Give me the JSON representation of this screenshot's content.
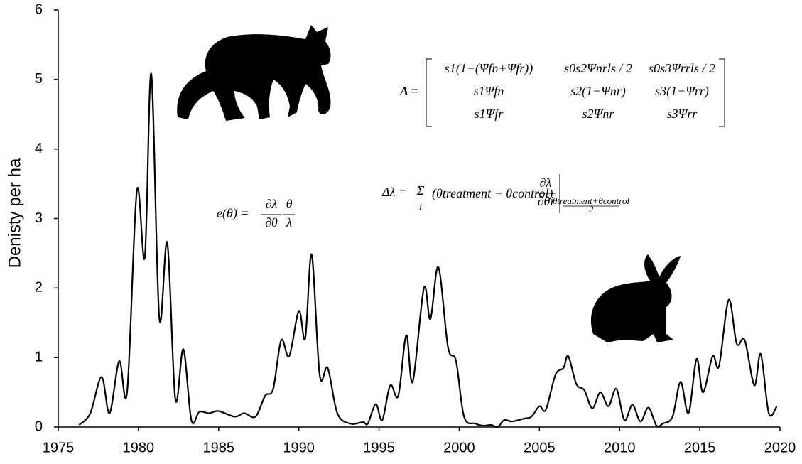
{
  "chart_data": {
    "type": "line",
    "y_label": "Denisty per ha",
    "x": [
      1976.3,
      1977.0,
      1977.7,
      1978.2,
      1978.8,
      1979.3,
      1979.9,
      1980.4,
      1980.8,
      1981.3,
      1981.8,
      1982.3,
      1982.8,
      1983.3,
      1983.8,
      1984.4,
      1985.0,
      1986.0,
      1986.6,
      1987.3,
      1987.9,
      1988.4,
      1988.9,
      1989.4,
      1990.0,
      1990.4,
      1990.8,
      1991.3,
      1991.8,
      1992.4,
      1993.2,
      1994.0,
      1994.3,
      1994.8,
      1995.2,
      1995.7,
      1996.2,
      1996.7,
      1997.1,
      1997.8,
      1998.2,
      1998.7,
      1999.3,
      1999.8,
      2000.3,
      2001.0,
      2001.5,
      2002.0,
      2002.4,
      2002.8,
      2003.3,
      2004.0,
      2004.5,
      2005.0,
      2005.4,
      2006.0,
      2006.5,
      2006.8,
      2007.3,
      2007.8,
      2008.3,
      2008.8,
      2009.3,
      2009.8,
      2010.3,
      2010.8,
      2011.3,
      2011.8,
      2012.3,
      2012.7,
      2013.3,
      2013.8,
      2014.3,
      2014.8,
      2015.2,
      2015.8,
      2016.2,
      2016.8,
      2017.3,
      2017.8,
      2018.4,
      2018.8,
      2019.3,
      2019.8
    ],
    "series": [
      {
        "color": "#000000",
        "values": [
          0.03,
          0.2,
          0.72,
          0.2,
          0.95,
          0.52,
          3.4,
          2.45,
          5.08,
          1.57,
          2.65,
          0.4,
          1.12,
          0.1,
          0.22,
          0.2,
          0.23,
          0.15,
          0.2,
          0.15,
          0.45,
          0.55,
          1.25,
          1.02,
          1.67,
          1.28,
          2.48,
          0.75,
          0.85,
          0.2,
          0.05,
          0.07,
          0.05,
          0.33,
          0.1,
          0.6,
          0.45,
          1.32,
          0.65,
          2.0,
          1.55,
          2.3,
          1.15,
          0.95,
          0.15,
          0.05,
          0.02,
          0.03,
          0.0,
          0.1,
          0.08,
          0.12,
          0.15,
          0.3,
          0.25,
          0.75,
          0.85,
          1.02,
          0.62,
          0.53,
          0.27,
          0.5,
          0.3,
          0.55,
          0.1,
          0.32,
          0.08,
          0.28,
          0.02,
          0.05,
          0.15,
          0.65,
          0.2,
          0.98,
          0.5,
          1.02,
          0.88,
          1.83,
          1.2,
          1.25,
          0.6,
          1.05,
          0.2,
          0.3
        ]
      }
    ],
    "xlim": [
      1975,
      2020
    ],
    "xticks": [
      1975,
      1980,
      1985,
      1990,
      1995,
      2000,
      2005,
      2010,
      2015,
      2020
    ],
    "ylim": [
      0,
      6
    ],
    "yticks": [
      0,
      1,
      2,
      3,
      4,
      5,
      6
    ],
    "annotations": {
      "elasticity": {
        "lhs": "e(θ) =",
        "fractions": [
          [
            "∂λ",
            "∂θ"
          ],
          [
            "θ",
            "λ"
          ]
        ]
      },
      "matrix": {
        "lhs": "A =",
        "rows": [
          [
            "s1(1−(Ψfn+Ψfr))",
            "s0s2Ψnrls / 2",
            "s0s3Ψrrls / 2"
          ],
          [
            "s1Ψfn",
            "s2(1−Ψnr)",
            "s3(1−Ψrr)"
          ],
          [
            "s1Ψfr",
            "s2Ψnr",
            "s3Ψrr"
          ]
        ]
      },
      "ltre": {
        "lhs": "Δλ =",
        "sum": "Σ",
        "index": "i",
        "term": "(θtreatment − θcontrol)",
        "fraction": [
          "∂λ",
          "∂θi"
        ],
        "eval_fraction": [
          "θtreatment+θcontrol",
          "2"
        ]
      }
    }
  }
}
